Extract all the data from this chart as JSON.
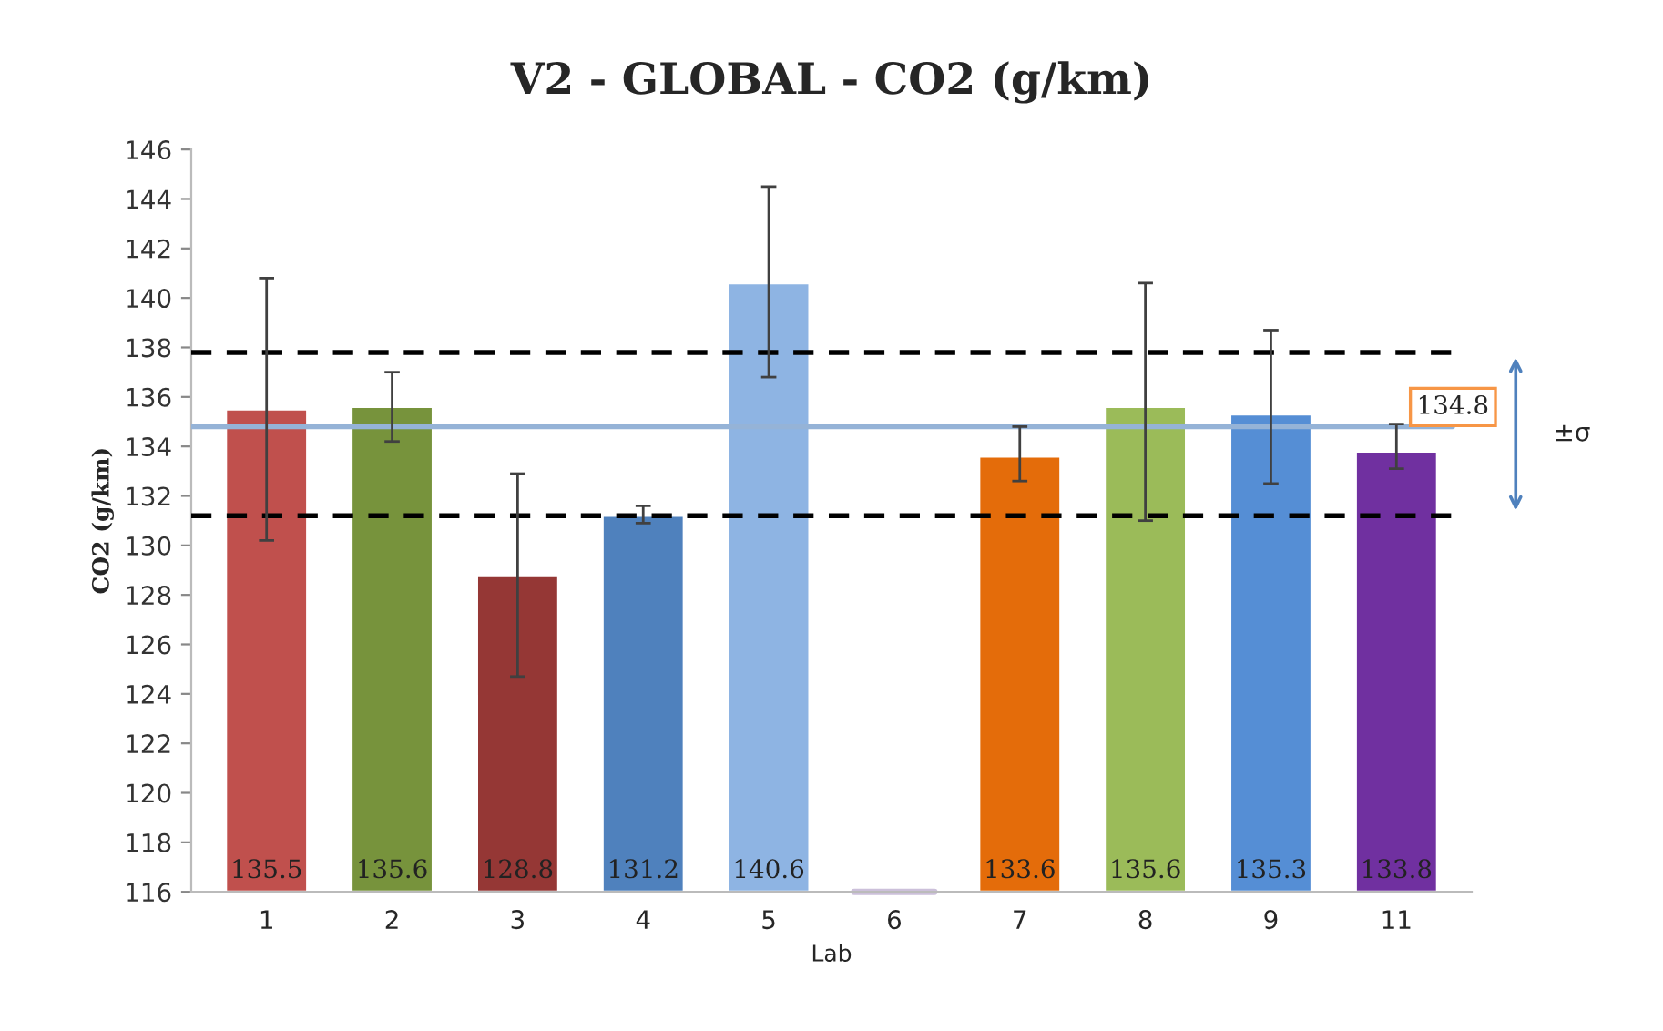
{
  "chart_data": {
    "type": "bar",
    "title": "V2 - GLOBAL - CO2 (g/km)",
    "xlabel": "Lab",
    "ylabel": "CO2 (g/km)",
    "categories": [
      "1",
      "2",
      "3",
      "4",
      "5",
      "6",
      "7",
      "8",
      "9",
      "11"
    ],
    "values": [
      135.5,
      135.6,
      128.8,
      131.2,
      140.6,
      116,
      133.6,
      135.6,
      135.3,
      133.8
    ],
    "value_labels": [
      "135.5",
      "135.6",
      "128.8",
      "131.2",
      "140.6",
      null,
      "133.6",
      "135.6",
      "135.3",
      "133.8"
    ],
    "colors": [
      "#c0504d",
      "#77933c",
      "#953735",
      "#4f81bd",
      "#8eb4e3",
      "#ccc0da",
      "#e46c0a",
      "#9bbb59",
      "#558ed5",
      "#7030a0"
    ],
    "errors": [
      [
        130.2,
        140.8
      ],
      [
        134.2,
        137.0
      ],
      [
        124.7,
        132.9
      ],
      [
        130.9,
        131.6
      ],
      [
        136.8,
        144.5
      ],
      null,
      [
        132.6,
        134.8
      ],
      [
        131.0,
        140.6
      ],
      [
        132.5,
        138.7
      ],
      [
        133.1,
        134.9
      ]
    ],
    "ylim": [
      116,
      146
    ],
    "yticks": [
      116,
      118,
      120,
      122,
      124,
      126,
      128,
      130,
      132,
      134,
      136,
      138,
      140,
      142,
      144,
      146
    ],
    "ref_lines": [
      {
        "axis": "y",
        "value": 134.8,
        "label": "134.8",
        "color": "#95b3d7",
        "line_style": "solid"
      },
      {
        "axis": "y",
        "value": 137.8,
        "color": "#000000",
        "line_style": "dashed"
      },
      {
        "axis": "y",
        "value": 131.2,
        "color": "#000000",
        "line_style": "dashed"
      }
    ],
    "annotations": [
      "±σ"
    ],
    "grid": false,
    "legend": false
  }
}
